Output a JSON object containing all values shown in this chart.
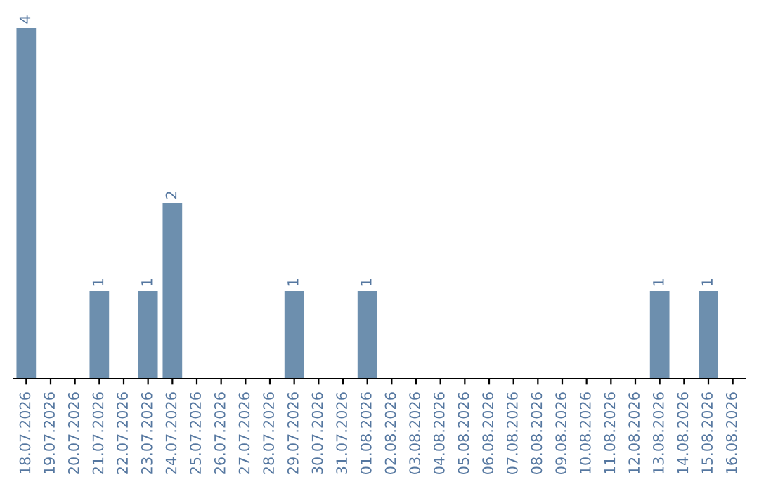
{
  "chart_data": {
    "type": "bar",
    "categories": [
      "18.07.2026",
      "19.07.2026",
      "20.07.2026",
      "21.07.2026",
      "22.07.2026",
      "23.07.2026",
      "24.07.2026",
      "25.07.2026",
      "26.07.2026",
      "27.07.2026",
      "28.07.2026",
      "29.07.2026",
      "30.07.2026",
      "31.07.2026",
      "01.08.2026",
      "02.08.2026",
      "03.08.2026",
      "04.08.2026",
      "05.08.2026",
      "06.08.2026",
      "07.08.2026",
      "08.08.2026",
      "09.08.2026",
      "10.08.2026",
      "11.08.2026",
      "12.08.2026",
      "13.08.2026",
      "14.08.2026",
      "15.08.2026",
      "16.08.2026"
    ],
    "values": [
      4,
      0,
      0,
      1,
      0,
      1,
      2,
      0,
      0,
      0,
      0,
      1,
      0,
      0,
      1,
      0,
      0,
      0,
      0,
      0,
      0,
      0,
      0,
      0,
      0,
      0,
      1,
      0,
      1,
      0
    ],
    "value_labels": [
      "4",
      null,
      null,
      "1",
      null,
      "1",
      "2",
      null,
      null,
      null,
      null,
      "1",
      null,
      null,
      "1",
      null,
      null,
      null,
      null,
      null,
      null,
      null,
      null,
      null,
      null,
      null,
      "1",
      null,
      "1",
      null
    ],
    "color": "#6d8fae",
    "ylim": [
      0,
      4
    ],
    "tick_labels": "x",
    "grid": false,
    "legend": false
  }
}
